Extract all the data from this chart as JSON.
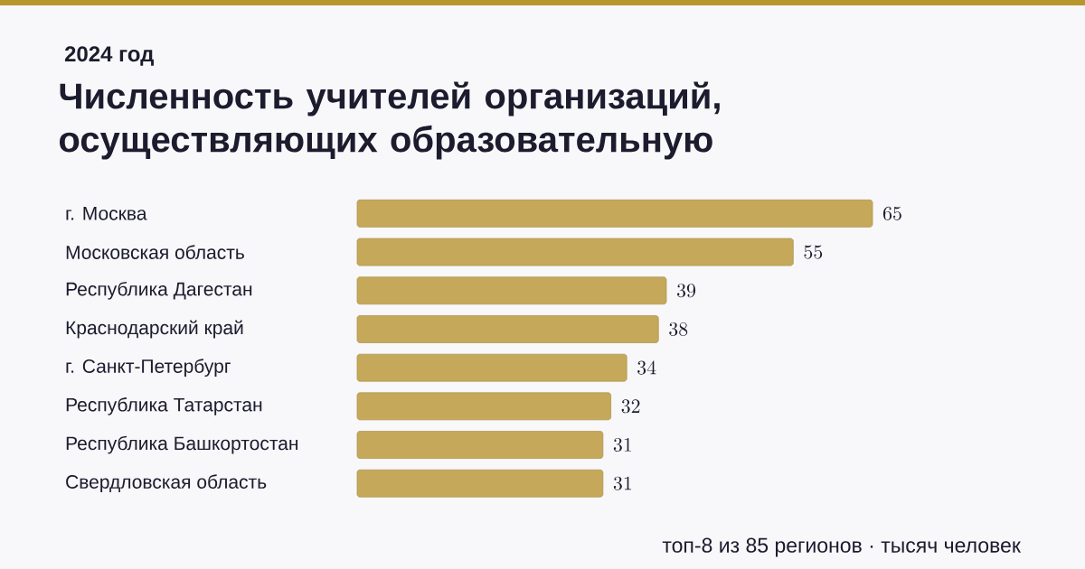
{
  "chart_data": {
    "type": "bar",
    "orientation": "horizontal",
    "subtitle": "2024 год",
    "title": "Численность учителей организаций, осуществляющих образовательную",
    "categories": [
      "г. Москва",
      "Московская область",
      "Республика Дагестан",
      "Краснодарский край",
      "г. Санкт-Петербург",
      "Республика Татарстан",
      "Республика Башкортостан",
      "Свердловская область"
    ],
    "values": [
      65,
      55,
      39,
      38,
      34,
      32,
      31,
      31
    ],
    "color": "#c5a85a",
    "data_labels": true,
    "tick_labels": "y",
    "annotations": [
      "топ-8 из 85 регионов · тысяч человек"
    ]
  }
}
